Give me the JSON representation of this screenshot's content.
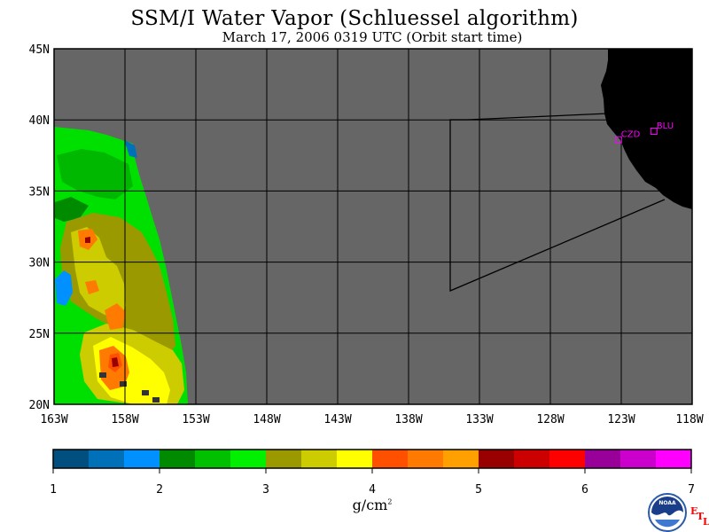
{
  "header": {
    "title": "SSM/I Water Vapor (Schluessel algorithm)",
    "subtitle": "March 17, 2006  0319 UTC  (Orbit start time)"
  },
  "map": {
    "lat_labels": [
      "45N",
      "40N",
      "35N",
      "30N",
      "25N",
      "20N"
    ],
    "lon_labels": [
      "163W",
      "158W",
      "153W",
      "148W",
      "143W",
      "138W",
      "133W",
      "128W",
      "123W",
      "118W"
    ],
    "lat_range": [
      20,
      45
    ],
    "lon_range": [
      -163,
      -118
    ],
    "stations": [
      {
        "name": "CZD",
        "lat": 38.6,
        "lon": -123.2
      },
      {
        "name": "BLU",
        "lat": 39.2,
        "lon": -120.7
      }
    ],
    "colors": {
      "no_data": "#666666",
      "land": "#000000",
      "grid": "#000000",
      "station": "#ff00ff"
    }
  },
  "colorbar": {
    "tick_labels": [
      "1",
      "2",
      "3",
      "4",
      "5",
      "6",
      "7"
    ],
    "range": [
      1,
      7
    ],
    "units": "g/cm",
    "units_sup": "2",
    "colors": [
      "#004f7f",
      "#0070b8",
      "#0090ff",
      "#008a00",
      "#00c000",
      "#00f000",
      "#9a9a00",
      "#cccc00",
      "#ffff00",
      "#ff5000",
      "#ff7a00",
      "#ffa000",
      "#990000",
      "#cc0000",
      "#ff0000",
      "#990099",
      "#cc00cc",
      "#ff00ff"
    ]
  },
  "logos": {
    "noaa_text": "NOAA",
    "etl_letters": [
      "E",
      "T",
      "L"
    ]
  }
}
